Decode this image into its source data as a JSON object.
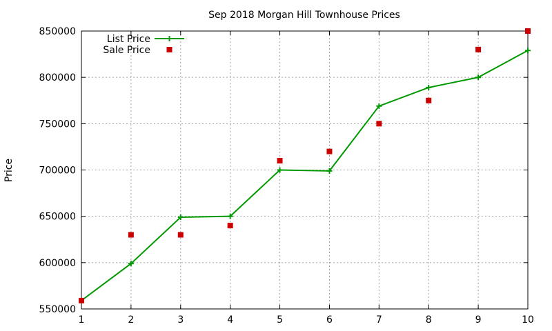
{
  "chart_data": {
    "type": "line",
    "title": "Sep 2018 Morgan Hill Townhouse Prices",
    "xlabel": "",
    "ylabel": "Price",
    "xlim": [
      1,
      10
    ],
    "ylim": [
      550000,
      850000
    ],
    "x_ticks": [
      "1",
      "2",
      "3",
      "4",
      "5",
      "6",
      "7",
      "8",
      "9",
      "10"
    ],
    "y_ticks": [
      "550000",
      "600000",
      "650000",
      "700000",
      "750000",
      "800000",
      "850000"
    ],
    "grid": true,
    "legend_position": "top-left",
    "x": [
      1,
      2,
      3,
      4,
      5,
      6,
      7,
      8,
      9,
      10
    ],
    "series": [
      {
        "name": "List Price",
        "style": "line-with-plus-markers",
        "color": "#009900",
        "values": [
          559000,
          599000,
          649000,
          650000,
          700000,
          699000,
          769000,
          789000,
          800000,
          829000
        ]
      },
      {
        "name": "Sale Price",
        "style": "square-markers",
        "color": "#cc0000",
        "values": [
          559000,
          630000,
          630000,
          640000,
          710000,
          720000,
          750000,
          775000,
          830000,
          850000
        ]
      }
    ]
  }
}
